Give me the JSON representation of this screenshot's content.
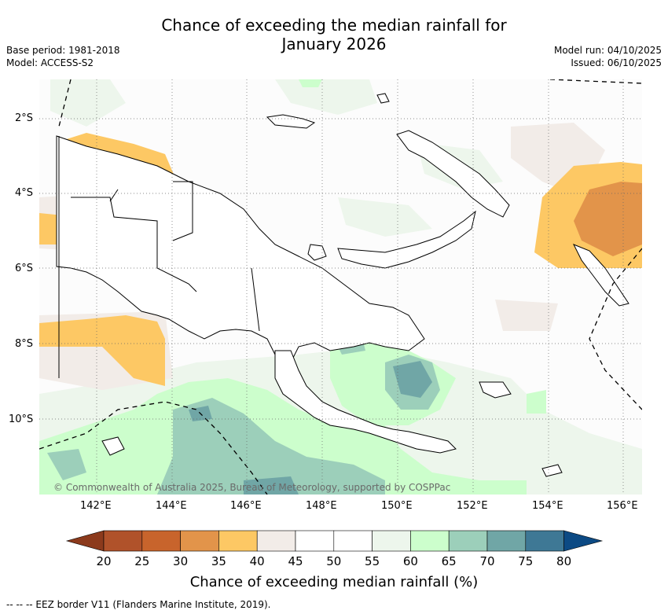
{
  "header": {
    "title_line1": "Chance of exceeding the median rainfall for",
    "title_line2": "January 2026",
    "base_period": "Base period: 1981-2018",
    "model": "Model: ACCESS-S2",
    "model_run": "Model run: 04/10/2025",
    "issued": "Issued: 06/10/2025"
  },
  "axes": {
    "lat_labels": [
      "2°S",
      "4°S",
      "6°S",
      "8°S",
      "10°S"
    ],
    "lon_labels": [
      "142°E",
      "144°E",
      "146°E",
      "148°E",
      "150°E",
      "152°E",
      "154°E",
      "156°E"
    ]
  },
  "map": {
    "copyright": "© Commonwealth of Australia 2025, Bureau of Meteorology, supported by COSPPac",
    "region": "Papua New Guinea"
  },
  "colorbar": {
    "labels": [
      "20",
      "25",
      "30",
      "35",
      "40",
      "45",
      "50",
      "55",
      "60",
      "65",
      "70",
      "75",
      "80"
    ],
    "colors": [
      "#b0522a",
      "#c8642c",
      "#e2944a",
      "#fdc864",
      "#f2ece8",
      "#ffffff",
      "#ffffff",
      "#edf6ec",
      "#ccfecc",
      "#9ccfba",
      "#70a6a6",
      "#3e7895"
    ],
    "low_arrow_color": "#8c3a1c",
    "high_arrow_color": "#0c4a84",
    "title": "Chance of exceeding median rainfall (%)"
  },
  "footer": {
    "eez_legend": "--  --  -- EEZ border V11 (Flanders Marine Institute, 2019)."
  }
}
